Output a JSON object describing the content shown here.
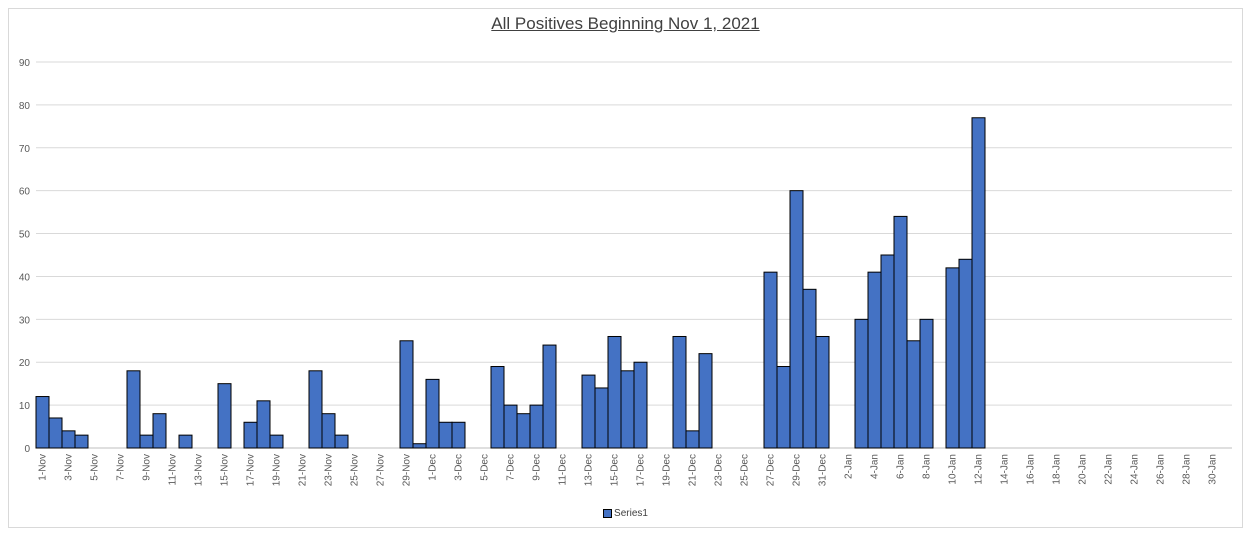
{
  "chart_data": {
    "type": "bar",
    "title": "All Positives Beginning Nov 1, 2021",
    "xlabel": "",
    "ylabel": "",
    "ylim": [
      0,
      90
    ],
    "yticks": [
      0,
      10,
      20,
      30,
      40,
      50,
      60,
      70,
      80,
      90
    ],
    "grid": true,
    "legend_position": "bottom",
    "bar_color": "#4472c4",
    "bar_edge_color": "#000000",
    "categories": [
      "1-Nov",
      "2-Nov",
      "3-Nov",
      "4-Nov",
      "5-Nov",
      "6-Nov",
      "7-Nov",
      "8-Nov",
      "9-Nov",
      "10-Nov",
      "11-Nov",
      "12-Nov",
      "13-Nov",
      "14-Nov",
      "15-Nov",
      "16-Nov",
      "17-Nov",
      "18-Nov",
      "19-Nov",
      "20-Nov",
      "21-Nov",
      "22-Nov",
      "23-Nov",
      "24-Nov",
      "25-Nov",
      "26-Nov",
      "27-Nov",
      "28-Nov",
      "29-Nov",
      "30-Nov",
      "1-Dec",
      "2-Dec",
      "3-Dec",
      "4-Dec",
      "5-Dec",
      "6-Dec",
      "7-Dec",
      "8-Dec",
      "9-Dec",
      "10-Dec",
      "11-Dec",
      "12-Dec",
      "13-Dec",
      "14-Dec",
      "15-Dec",
      "16-Dec",
      "17-Dec",
      "18-Dec",
      "19-Dec",
      "20-Dec",
      "21-Dec",
      "22-Dec",
      "23-Dec",
      "24-Dec",
      "25-Dec",
      "26-Dec",
      "27-Dec",
      "28-Dec",
      "29-Dec",
      "30-Dec",
      "31-Dec",
      "1-Jan",
      "2-Jan",
      "3-Jan",
      "4-Jan",
      "5-Jan",
      "6-Jan",
      "7-Jan",
      "8-Jan",
      "9-Jan",
      "10-Jan",
      "11-Jan",
      "12-Jan",
      "13-Jan",
      "14-Jan",
      "15-Jan",
      "16-Jan",
      "17-Jan",
      "18-Jan",
      "19-Jan",
      "20-Jan",
      "21-Jan",
      "22-Jan",
      "23-Jan",
      "24-Jan",
      "25-Jan",
      "26-Jan",
      "27-Jan",
      "28-Jan",
      "29-Jan",
      "30-Jan",
      "31-Jan"
    ],
    "tick_labels": [
      "1-Nov",
      "3-Nov",
      "5-Nov",
      "7-Nov",
      "9-Nov",
      "11-Nov",
      "13-Nov",
      "15-Nov",
      "17-Nov",
      "19-Nov",
      "21-Nov",
      "23-Nov",
      "25-Nov",
      "27-Nov",
      "29-Nov",
      "1-Dec",
      "3-Dec",
      "5-Dec",
      "7-Dec",
      "9-Dec",
      "11-Dec",
      "13-Dec",
      "15-Dec",
      "17-Dec",
      "19-Dec",
      "21-Dec",
      "23-Dec",
      "25-Dec",
      "27-Dec",
      "29-Dec",
      "31-Dec",
      "2-Jan",
      "4-Jan",
      "6-Jan",
      "8-Jan",
      "10-Jan",
      "12-Jan",
      "14-Jan",
      "16-Jan",
      "18-Jan",
      "20-Jan",
      "22-Jan",
      "24-Jan",
      "26-Jan",
      "28-Jan",
      "30-Jan"
    ],
    "series": [
      {
        "name": "Series1",
        "values": [
          12,
          7,
          4,
          3,
          0,
          0,
          0,
          18,
          3,
          8,
          0,
          3,
          0,
          0,
          15,
          0,
          6,
          11,
          3,
          0,
          0,
          18,
          8,
          3,
          0,
          0,
          0,
          0,
          25,
          1,
          16,
          6,
          6,
          0,
          0,
          19,
          10,
          8,
          10,
          24,
          0,
          0,
          17,
          14,
          26,
          18,
          20,
          0,
          0,
          26,
          4,
          22,
          0,
          0,
          0,
          0,
          41,
          19,
          60,
          37,
          26,
          0,
          0,
          30,
          41,
          45,
          54,
          25,
          30,
          0,
          42,
          44,
          77,
          0,
          0,
          0,
          0,
          0,
          0,
          0,
          0,
          0,
          0,
          0,
          0,
          0,
          0,
          0,
          0,
          0,
          0,
          0
        ]
      }
    ]
  }
}
